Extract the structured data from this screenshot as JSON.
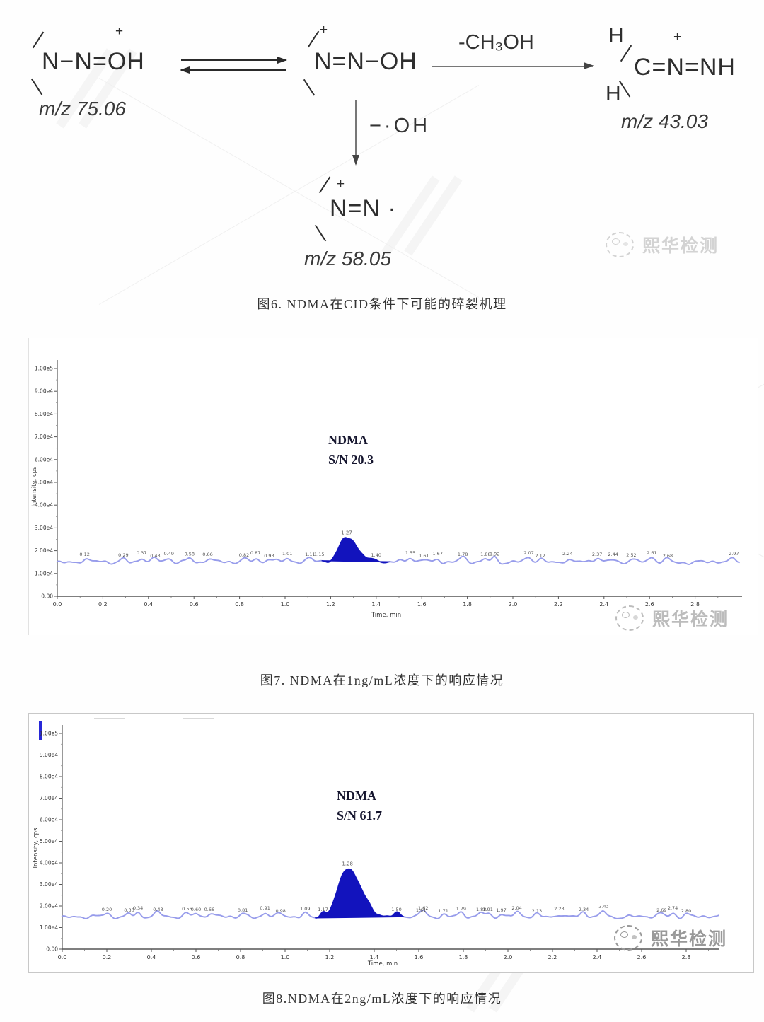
{
  "watermark": {
    "brand": "熙华检测"
  },
  "mechanism": {
    "caption": "图6. NDMA在CID条件下可能的碎裂机理",
    "structure_a": {
      "formula": "N−N=OH",
      "charge": "+",
      "mz": "m/z 75.06"
    },
    "structure_b": {
      "formula": "N=N−OH",
      "charge": "+"
    },
    "structure_c": {
      "h_top": "H",
      "h_bottom": "H",
      "formula": "C=N=NH",
      "charge": "+",
      "mz": "m/z 43.03"
    },
    "structure_d": {
      "formula": "N=N ·",
      "charge": "+",
      "mz": "m/z 58.05"
    },
    "arrow_right_label": "-CH₃OH",
    "arrow_down_label": "−·OH"
  },
  "figure7": {
    "caption": "图7. NDMA在1ng/mL浓度下的响应情况"
  },
  "figure8": {
    "caption": "图8.NDMA在2ng/mL浓度下的响应情况"
  },
  "chart_data": [
    {
      "type": "area",
      "title": "",
      "annotation": {
        "line1": "NDMA",
        "line2": "S/N 20.3"
      },
      "xlabel": "Time, min",
      "ylabel": "Intensity, cps",
      "xlim": [
        0.0,
        3.0
      ],
      "ylim": [
        0,
        105000
      ],
      "x_ticks": [
        "0.0",
        "0.2",
        "0.4",
        "0.6",
        "0.8",
        "1.0",
        "1.2",
        "1.4",
        "1.6",
        "1.8",
        "2.0",
        "2.2",
        "2.4",
        "2.6",
        "2.8"
      ],
      "y_ticks": [
        "0.00",
        "1.00e4",
        "2.00e4",
        "3.00e4",
        "4.00e4",
        "5.00e4",
        "6.00e4",
        "7.00e4",
        "8.00e4",
        "9.00e4",
        "1.00e5"
      ],
      "grid": false,
      "baseline_cps": 15000,
      "main_peak": {
        "time": 1.27,
        "apex_cps": 26000,
        "label": "1.27",
        "sigma_left": 0.03,
        "sigma_right": 0.046
      },
      "noise_peak_labels": [
        [
          0.12,
          "0.12"
        ],
        [
          0.29,
          "0.29"
        ],
        [
          0.37,
          "0.37"
        ],
        [
          0.43,
          "0.43"
        ],
        [
          0.49,
          "0.49"
        ],
        [
          0.58,
          "0.58",
          2000
        ],
        [
          0.66,
          "0.66"
        ],
        [
          0.82,
          "0.82"
        ],
        [
          0.87,
          "0.87"
        ],
        [
          0.93,
          "0.93"
        ],
        [
          1.01,
          "1.01"
        ],
        [
          1.11,
          "1.11"
        ],
        [
          1.15,
          "1.15"
        ],
        [
          1.4,
          "1.40"
        ],
        [
          1.55,
          "1.55"
        ],
        [
          1.61,
          "1.61"
        ],
        [
          1.67,
          "1.67"
        ],
        [
          1.78,
          "1.78"
        ],
        [
          1.88,
          "1.88"
        ],
        [
          1.92,
          "1.92",
          2100
        ],
        [
          2.07,
          "2.07"
        ],
        [
          2.12,
          "2.12"
        ],
        [
          2.24,
          "2.24"
        ],
        [
          2.37,
          "2.37"
        ],
        [
          2.44,
          "2.44"
        ],
        [
          2.52,
          "2.52"
        ],
        [
          2.61,
          "2.61"
        ],
        [
          2.68,
          "2.68"
        ],
        [
          2.97,
          "2.97"
        ]
      ],
      "trace_color": "#979ceb",
      "peak_fill": "#1213bd"
    },
    {
      "type": "area",
      "title": "",
      "annotation": {
        "line1": "NDMA",
        "line2": "S/N 61.7"
      },
      "xlabel": "Time, min",
      "ylabel": "Intensity, cps",
      "xlim": [
        0.0,
        3.0
      ],
      "ylim": [
        0,
        105000
      ],
      "x_ticks": [
        "0.0",
        "0.2",
        "0.4",
        "0.6",
        "0.8",
        "1.0",
        "1.2",
        "1.4",
        "1.6",
        "1.8",
        "2.0",
        "2.2",
        "2.4",
        "2.6",
        "2.8"
      ],
      "y_ticks": [
        "0.00",
        "1.00e4",
        "2.00e4",
        "3.00e4",
        "4.00e4",
        "5.00e4",
        "6.00e4",
        "7.00e4",
        "8.00e4",
        "9.00e4",
        "1.00e5"
      ],
      "grid": false,
      "baseline_cps": 15000,
      "main_peak": {
        "time": 1.28,
        "apex_cps": 37500,
        "label": "1.28",
        "sigma_left": 0.04,
        "sigma_right": 0.06
      },
      "noise_peak_labels": [
        [
          0.2,
          "0.20"
        ],
        [
          0.3,
          "0.30"
        ],
        [
          0.34,
          "0.34"
        ],
        [
          0.43,
          "0.43",
          1900
        ],
        [
          0.56,
          "0.56"
        ],
        [
          0.6,
          "0.60"
        ],
        [
          0.66,
          "0.66"
        ],
        [
          0.81,
          "0.81"
        ],
        [
          0.91,
          "0.91"
        ],
        [
          0.98,
          "0.98"
        ],
        [
          1.09,
          "1.09"
        ],
        [
          1.17,
          "1.17"
        ],
        [
          1.5,
          "1.50"
        ],
        [
          1.61,
          "1.61"
        ],
        [
          1.62,
          "1.62"
        ],
        [
          1.71,
          "1.71"
        ],
        [
          1.79,
          "1.79"
        ],
        [
          1.88,
          "1.88"
        ],
        [
          1.91,
          "1.91"
        ],
        [
          1.97,
          "1.97"
        ],
        [
          2.04,
          "2.04"
        ],
        [
          2.13,
          "2.13"
        ],
        [
          2.23,
          "2.23"
        ],
        [
          2.34,
          "2.34"
        ],
        [
          2.43,
          "2.43",
          2600
        ],
        [
          2.69,
          "2.69"
        ],
        [
          2.74,
          "2.74"
        ],
        [
          2.8,
          "2.80"
        ]
      ],
      "trace_color": "#979ceb",
      "peak_fill": "#1213bd"
    }
  ]
}
